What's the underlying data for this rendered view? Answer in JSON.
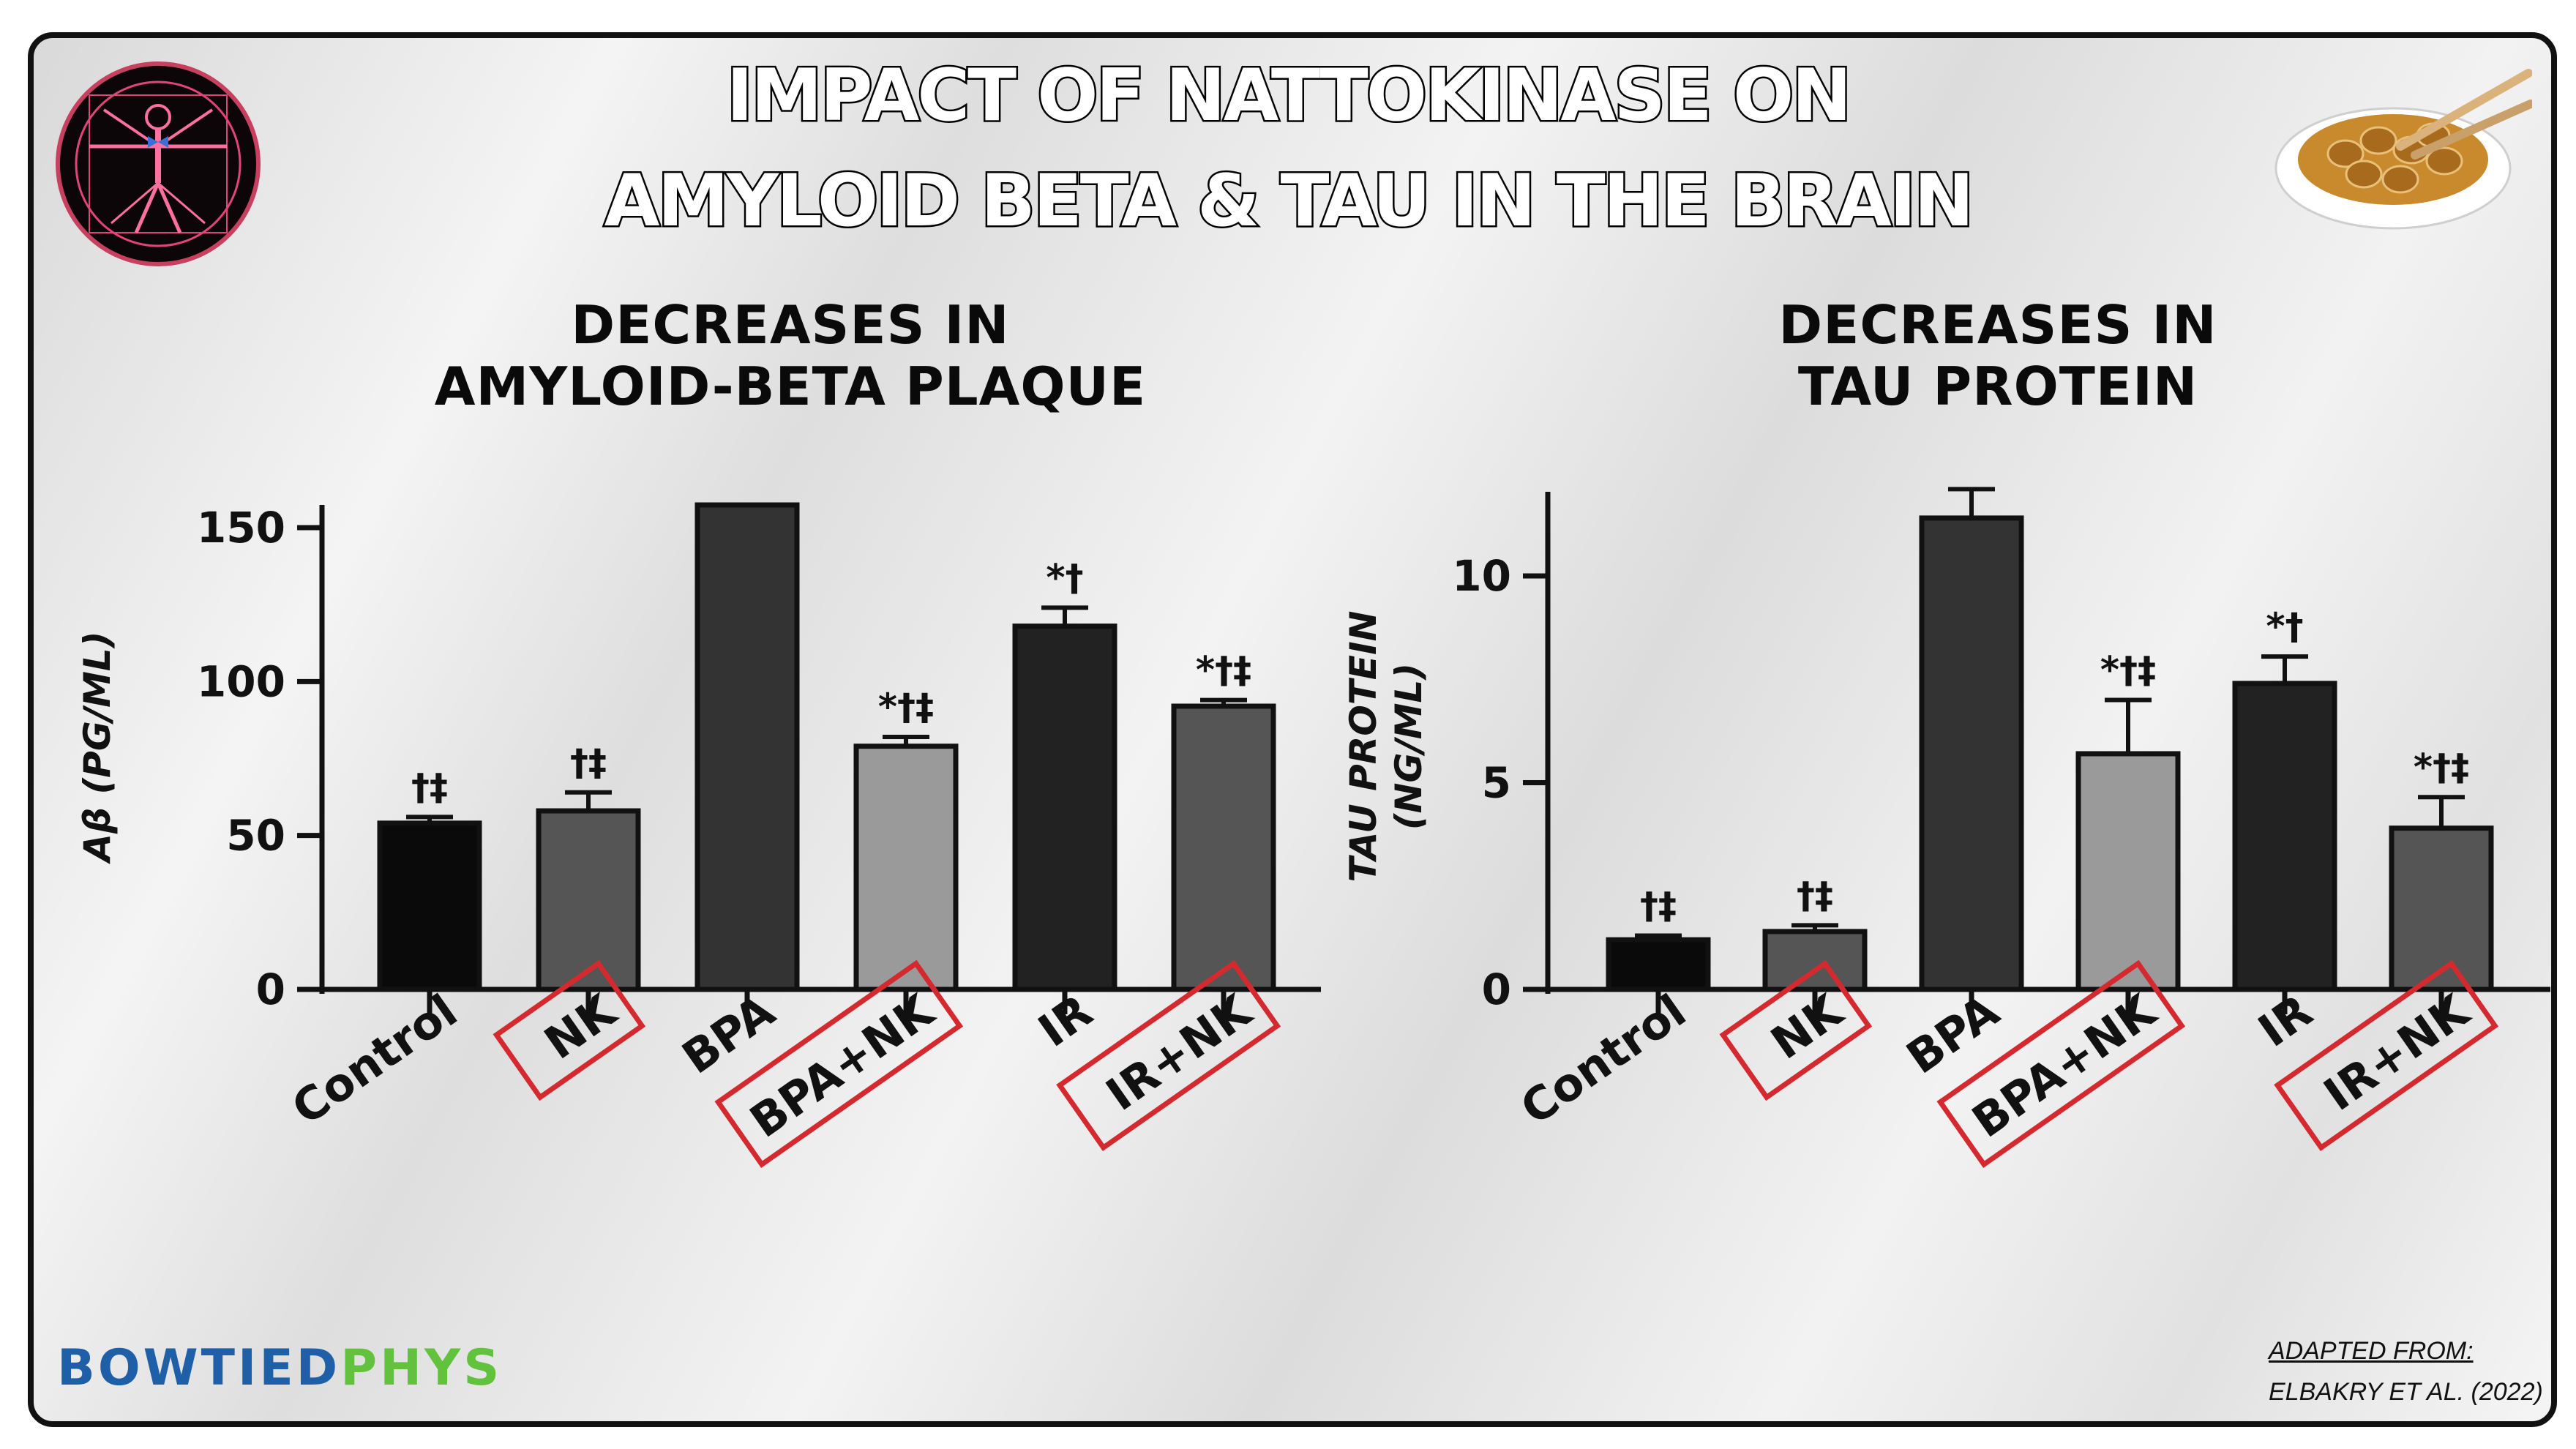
{
  "title_line1": "IMPACT OF NATTOKINASE ON",
  "title_line2": "AMYLOID BETA & TAU IN THE BRAIN",
  "chart_data": [
    {
      "type": "bar",
      "subtitle_line1": "DECREASES IN",
      "subtitle_line2": "AMYLOID-BETA PLAQUE",
      "ylabel": "Aβ (PG/ML)",
      "categories": [
        "Control",
        "NK",
        "BPA",
        "BPA+NK",
        "IR",
        "IR+NK"
      ],
      "values": [
        54,
        58,
        158,
        79,
        118,
        92
      ],
      "errors": [
        2,
        6,
        0,
        3,
        6,
        2
      ],
      "significance": [
        "†‡",
        "†‡",
        "",
        "*†‡",
        "*†",
        "*†‡"
      ],
      "bar_colors": [
        "#0a0a0a",
        "#555555",
        "#333333",
        "#9a9a9a",
        "#222222",
        "#555555"
      ],
      "highlighted": [
        "NK",
        "BPA+NK",
        "IR+NK"
      ],
      "ylim": [
        0,
        160
      ],
      "yticks": [
        0,
        50,
        100,
        150
      ]
    },
    {
      "type": "bar",
      "subtitle_line1": "DECREASES IN",
      "subtitle_line2": "TAU PROTEIN",
      "ylabel_line1": "TAU PROTEIN",
      "ylabel_line2": "(NG/ML)",
      "categories": [
        "Control",
        "NK",
        "BPA",
        "BPA+NK",
        "IR",
        "IR+NK"
      ],
      "values": [
        1.2,
        1.4,
        11.4,
        5.7,
        7.4,
        3.9
      ],
      "errors": [
        0.1,
        0.15,
        0.7,
        1.3,
        0.65,
        0.75
      ],
      "significance": [
        "†‡",
        "†‡",
        "",
        "*†‡",
        "*†",
        "*†‡"
      ],
      "bar_colors": [
        "#0a0a0a",
        "#555555",
        "#333333",
        "#9a9a9a",
        "#222222",
        "#555555"
      ],
      "highlighted": [
        "NK",
        "BPA+NK",
        "IR+NK"
      ],
      "ylim": [
        0,
        12
      ],
      "yticks": [
        0,
        5,
        10
      ]
    }
  ],
  "brand": {
    "part1": "BOWTIED",
    "part2": "PHYS"
  },
  "citation": {
    "line1": "ADAPTED FROM:",
    "line2": "ELBAKRY ET AL. (2022)"
  },
  "colors": {
    "highlight_box": "#d42a2f",
    "brand_blue": "#1f5fa8",
    "brand_green": "#62c23e"
  },
  "icons": {
    "left_logo": "vitruvian-man-icon",
    "right_logo": "natto-bowl-icon"
  }
}
